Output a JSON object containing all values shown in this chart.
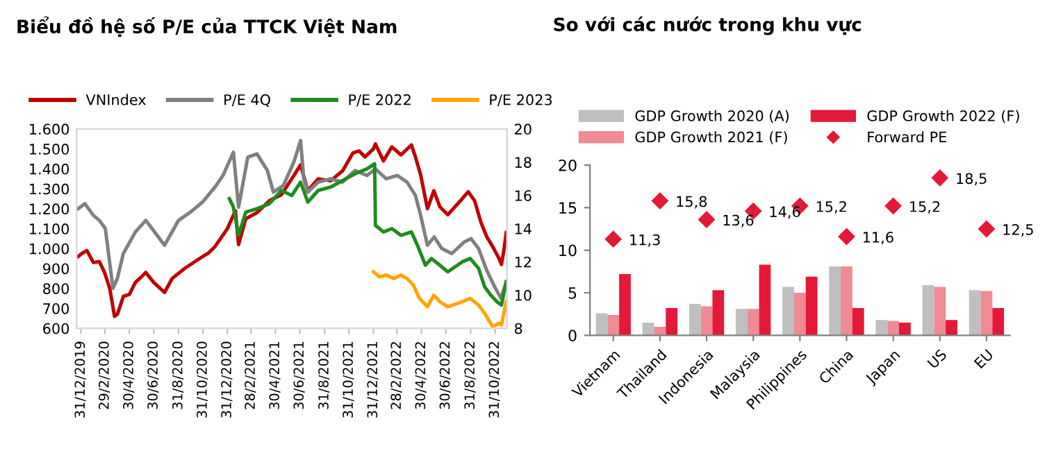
{
  "chart_data": [
    {
      "type": "line",
      "title": "Biểu đồ hệ số P/E của TTCK Việt Nam",
      "legend": "top",
      "xlim": [
        "2019-12-20",
        "2022-11-30"
      ],
      "xticks": [
        {
          "value": "2019-12-31",
          "label": "31/12/2019"
        },
        {
          "value": "2020-02-29",
          "label": "29/2/2020"
        },
        {
          "value": "2020-04-30",
          "label": "30/4/2020"
        },
        {
          "value": "2020-06-30",
          "label": "30/6/2020"
        },
        {
          "value": "2020-08-31",
          "label": "31/8/2020"
        },
        {
          "value": "2020-10-31",
          "label": "31/10/2020"
        },
        {
          "value": "2020-12-31",
          "label": "31/12/2020"
        },
        {
          "value": "2021-02-28",
          "label": "28/2/2021"
        },
        {
          "value": "2021-04-30",
          "label": "30/4/2021"
        },
        {
          "value": "2021-06-30",
          "label": "30/6/2021"
        },
        {
          "value": "2021-08-31",
          "label": "31/8/2021"
        },
        {
          "value": "2021-10-31",
          "label": "31/10/2021"
        },
        {
          "value": "2021-12-31",
          "label": "31/12/2021"
        },
        {
          "value": "2022-02-28",
          "label": "28/2/2022"
        },
        {
          "value": "2022-04-30",
          "label": "30/4/2022"
        },
        {
          "value": "2022-06-30",
          "label": "30/6/2022"
        },
        {
          "value": "2022-08-31",
          "label": "31/8/2022"
        },
        {
          "value": "2022-10-31",
          "label": "31/10/2022"
        }
      ],
      "ylim": [
        600,
        1600
      ],
      "yticks": [
        {
          "value": 600,
          "label": "600"
        },
        {
          "value": 700,
          "label": "700"
        },
        {
          "value": 800,
          "label": "800"
        },
        {
          "value": 900,
          "label": "900"
        },
        {
          "value": 1000,
          "label": "1.000"
        },
        {
          "value": 1100,
          "label": "1.100"
        },
        {
          "value": 1200,
          "label": "1.200"
        },
        {
          "value": 1300,
          "label": "1.300"
        },
        {
          "value": 1400,
          "label": "1.400"
        },
        {
          "value": 1500,
          "label": "1.500"
        },
        {
          "value": 1600,
          "label": "1.600"
        }
      ],
      "y2lim": [
        8,
        20
      ],
      "y2ticks": [
        8,
        10,
        12,
        14,
        16,
        18,
        20
      ],
      "series": [
        {
          "name": "VNIndex",
          "color": "#c00000",
          "x": [
            "2019-12-24",
            "2020-01-02",
            "2020-01-15",
            "2020-01-31",
            "2020-02-15",
            "2020-02-28",
            "2020-03-12",
            "2020-03-24",
            "2020-03-31",
            "2020-04-15",
            "2020-04-30",
            "2020-05-15",
            "2020-05-31",
            "2020-06-10",
            "2020-06-30",
            "2020-07-27",
            "2020-08-15",
            "2020-09-15",
            "2020-10-15",
            "2020-11-15",
            "2020-11-30",
            "2020-12-31",
            "2021-01-20",
            "2021-01-28",
            "2021-02-15",
            "2021-03-15",
            "2021-04-15",
            "2021-05-15",
            "2021-06-10",
            "2021-07-02",
            "2021-07-20",
            "2021-08-15",
            "2021-09-15",
            "2021-10-15",
            "2021-11-10",
            "2021-11-25",
            "2021-12-10",
            "2021-12-31",
            "2022-01-05",
            "2022-01-25",
            "2022-02-15",
            "2022-03-10",
            "2022-04-05",
            "2022-04-15",
            "2022-04-28",
            "2022-05-15",
            "2022-05-31",
            "2022-06-15",
            "2022-07-05",
            "2022-08-10",
            "2022-08-25",
            "2022-09-10",
            "2022-09-26",
            "2022-10-10",
            "2022-10-25",
            "2022-11-10",
            "2022-11-16",
            "2022-11-22",
            "2022-11-28"
          ],
          "values": [
            960,
            975,
            990,
            930,
            935,
            880,
            800,
            660,
            670,
            760,
            770,
            830,
            860,
            880,
            830,
            780,
            850,
            900,
            940,
            980,
            1010,
            1100,
            1190,
            1020,
            1150,
            1180,
            1240,
            1270,
            1350,
            1420,
            1290,
            1350,
            1340,
            1390,
            1480,
            1490,
            1460,
            1500,
            1525,
            1440,
            1510,
            1470,
            1520,
            1460,
            1370,
            1200,
            1290,
            1210,
            1170,
            1250,
            1285,
            1240,
            1130,
            1060,
            1010,
            950,
            920,
            990,
            1080
          ]
        },
        {
          "name": "P/E 4Q",
          "color": "#808080",
          "axis": "y2",
          "x": [
            "2019-12-24",
            "2020-01-10",
            "2020-01-31",
            "2020-02-15",
            "2020-03-01",
            "2020-03-20",
            "2020-03-31",
            "2020-04-15",
            "2020-05-15",
            "2020-06-10",
            "2020-07-27",
            "2020-08-31",
            "2020-09-30",
            "2020-10-30",
            "2020-11-30",
            "2020-12-20",
            "2021-01-15",
            "2021-01-28",
            "2021-02-20",
            "2021-03-15",
            "2021-04-10",
            "2021-04-25",
            "2021-05-20",
            "2021-06-15",
            "2021-07-02",
            "2021-07-10",
            "2021-07-20",
            "2021-08-15",
            "2021-09-15",
            "2021-10-15",
            "2021-11-15",
            "2021-12-15",
            "2022-01-05",
            "2022-02-01",
            "2022-03-01",
            "2022-03-25",
            "2022-04-15",
            "2022-04-28",
            "2022-05-15",
            "2022-06-01",
            "2022-06-20",
            "2022-07-15",
            "2022-08-15",
            "2022-09-01",
            "2022-09-20",
            "2022-10-10",
            "2022-10-30",
            "2022-11-15",
            "2022-11-28"
          ],
          "values": [
            15.2,
            15.5,
            14.8,
            14.5,
            14.0,
            10.4,
            11.0,
            12.5,
            13.8,
            14.5,
            13.0,
            14.5,
            15.0,
            15.6,
            16.5,
            17.2,
            18.6,
            15.3,
            18.3,
            18.5,
            17.5,
            16.2,
            16.6,
            18.0,
            19.3,
            17.0,
            16.2,
            16.8,
            17.0,
            16.8,
            17.5,
            17.2,
            17.6,
            17.0,
            17.2,
            16.8,
            16.0,
            14.8,
            13.0,
            13.5,
            12.8,
            12.5,
            13.2,
            13.4,
            12.8,
            11.5,
            10.5,
            9.8,
            10.8
          ]
        },
        {
          "name": "P/E 2022",
          "color": "#1e8c1e",
          "axis": "y2",
          "x": [
            "2021-01-05",
            "2021-01-15",
            "2021-01-28",
            "2021-02-15",
            "2021-03-15",
            "2021-04-15",
            "2021-05-15",
            "2021-06-10",
            "2021-07-02",
            "2021-07-20",
            "2021-08-15",
            "2021-09-15",
            "2021-10-15",
            "2021-11-15",
            "2021-12-15",
            "2022-01-03",
            "2022-01-05",
            "2022-01-25",
            "2022-02-15",
            "2022-03-10",
            "2022-04-05",
            "2022-04-20",
            "2022-05-10",
            "2022-05-25",
            "2022-06-15",
            "2022-07-05",
            "2022-08-10",
            "2022-08-30",
            "2022-09-20",
            "2022-10-05",
            "2022-10-20",
            "2022-11-05",
            "2022-11-16",
            "2022-11-28"
          ],
          "values": [
            15.8,
            15.3,
            13.6,
            15.0,
            15.2,
            15.5,
            16.3,
            16.0,
            16.8,
            15.6,
            16.3,
            16.5,
            16.9,
            17.3,
            17.6,
            17.9,
            14.2,
            13.8,
            14.0,
            13.6,
            13.8,
            13.0,
            11.8,
            12.2,
            11.8,
            11.4,
            12.0,
            12.2,
            11.6,
            10.5,
            10.0,
            9.6,
            9.4,
            10.8
          ]
        },
        {
          "name": "P/E 2023",
          "color": "#ffa500",
          "axis": "y2",
          "x": [
            "2021-12-31",
            "2022-01-15",
            "2022-02-01",
            "2022-02-20",
            "2022-03-10",
            "2022-03-25",
            "2022-04-10",
            "2022-04-25",
            "2022-05-15",
            "2022-05-31",
            "2022-06-15",
            "2022-07-05",
            "2022-08-10",
            "2022-08-30",
            "2022-09-20",
            "2022-10-05",
            "2022-10-25",
            "2022-11-10",
            "2022-11-16",
            "2022-11-28"
          ],
          "values": [
            11.4,
            11.1,
            11.2,
            11.0,
            11.2,
            11.0,
            10.6,
            9.8,
            9.3,
            10.0,
            9.6,
            9.3,
            9.6,
            9.8,
            9.4,
            8.9,
            8.1,
            8.3,
            8.2,
            9.6
          ]
        }
      ]
    },
    {
      "type": "bar",
      "title": "So với các nước trong khu vực",
      "legend": "top",
      "categories": [
        "Vietnam",
        "Thailand",
        "Indonesia",
        "Malaysia",
        "Philippines",
        "China",
        "Japan",
        "US",
        "EU"
      ],
      "ylim": [
        0,
        20
      ],
      "yticks": [
        0,
        5,
        10,
        15,
        20
      ],
      "series": [
        {
          "name": "GDP Growth 2020 (A)",
          "color": "#bfbfbf",
          "values": [
            2.6,
            1.5,
            3.7,
            3.1,
            5.7,
            8.1,
            1.8,
            5.9,
            5.3
          ]
        },
        {
          "name": "GDP Growth 2021 (F)",
          "color": "#f08a94",
          "values": [
            2.4,
            1.0,
            3.4,
            3.1,
            5.0,
            8.1,
            1.7,
            5.7,
            5.2
          ]
        },
        {
          "name": "GDP Growth 2022 (F)",
          "color": "#e31937",
          "values": [
            7.2,
            3.2,
            5.3,
            8.3,
            6.9,
            3.2,
            1.5,
            1.8,
            3.2
          ]
        },
        {
          "name": "Forward PE",
          "type": "scatter",
          "marker": "diamond",
          "color": "#e31937",
          "values": [
            11.3,
            15.8,
            13.6,
            14.6,
            15.2,
            11.6,
            15.2,
            18.5,
            12.5
          ],
          "value_labels": [
            "11,3",
            "15,8",
            "13,6",
            "14,6",
            "15,2",
            "11,6",
            "15,2",
            "18,5",
            "12,5"
          ]
        }
      ]
    }
  ]
}
